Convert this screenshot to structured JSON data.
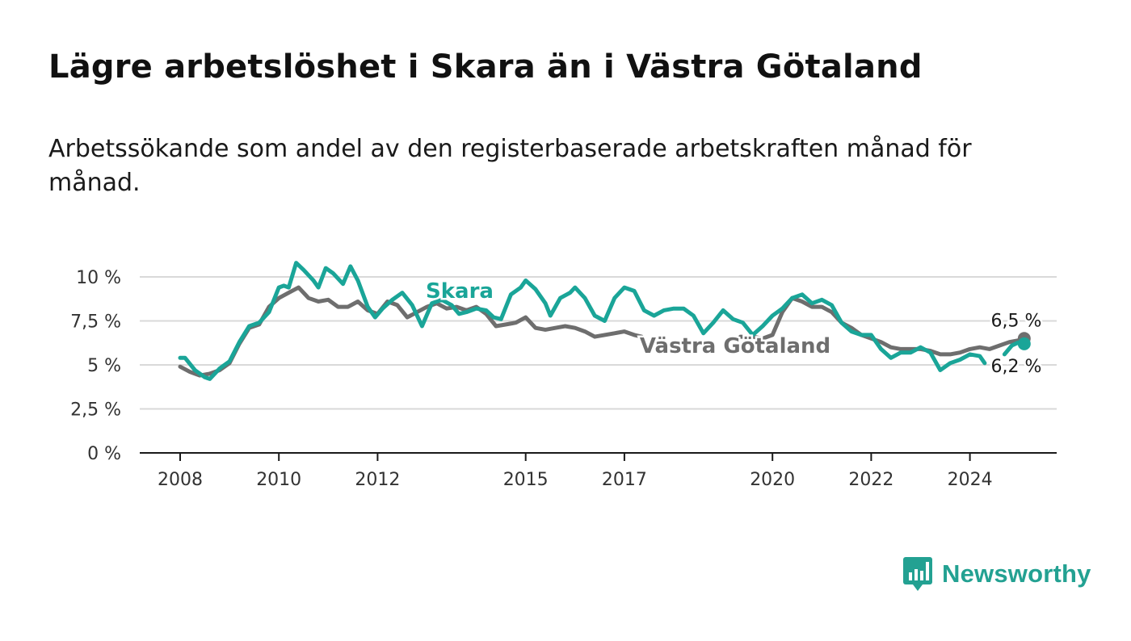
{
  "header": {
    "title": "Lägre arbetslöshet i Skara än i Västra Götaland",
    "subtitle": "Arbetssökande som andel av den registerbaserade arbetskraften månad för månad."
  },
  "brand": {
    "name": "Newsworthy",
    "color": "#23a192"
  },
  "chart_data": {
    "type": "line",
    "title": "Lägre arbetslöshet i Skara än i Västra Götaland",
    "subtitle": "Arbetssökande som andel av den registerbaserade arbetskraften månad för månad.",
    "xlabel": "",
    "ylabel": "",
    "xlim": [
      2007.2,
      2025.8
    ],
    "ylim": [
      0,
      10.5
    ],
    "x_ticks": [
      2008,
      2010,
      2012,
      2015,
      2017,
      2020,
      2022,
      2024
    ],
    "x_tick_labels": [
      "2008",
      "2010",
      "2012",
      "2015",
      "2017",
      "2020",
      "2022",
      "2024"
    ],
    "y_ticks": [
      0,
      2.5,
      5,
      7.5,
      10
    ],
    "y_tick_labels": [
      "0 %",
      "2,5 %",
      "5 %",
      "7,5 %",
      "10 %"
    ],
    "grid": true,
    "legend": "inline labels on lines",
    "series": [
      {
        "name": "Västra Götaland",
        "color": "#6e6e6e",
        "end_label": "6,5 %",
        "points": [
          [
            2008.0,
            4.9
          ],
          [
            2008.2,
            4.6
          ],
          [
            2008.4,
            4.4
          ],
          [
            2008.6,
            4.5
          ],
          [
            2008.8,
            4.7
          ],
          [
            2009.0,
            5.1
          ],
          [
            2009.2,
            6.2
          ],
          [
            2009.4,
            7.1
          ],
          [
            2009.6,
            7.3
          ],
          [
            2009.8,
            8.3
          ],
          [
            2010.0,
            8.8
          ],
          [
            2010.2,
            9.1
          ],
          [
            2010.4,
            9.4
          ],
          [
            2010.6,
            8.8
          ],
          [
            2010.8,
            8.6
          ],
          [
            2011.0,
            8.7
          ],
          [
            2011.2,
            8.3
          ],
          [
            2011.4,
            8.3
          ],
          [
            2011.6,
            8.6
          ],
          [
            2011.8,
            8.1
          ],
          [
            2012.0,
            7.9
          ],
          [
            2012.2,
            8.6
          ],
          [
            2012.4,
            8.4
          ],
          [
            2012.6,
            7.7
          ],
          [
            2012.8,
            8.0
          ],
          [
            2013.0,
            8.3
          ],
          [
            2013.2,
            8.5
          ],
          [
            2013.4,
            8.2
          ],
          [
            2013.6,
            8.3
          ],
          [
            2013.8,
            8.1
          ],
          [
            2014.0,
            8.3
          ],
          [
            2014.2,
            7.9
          ],
          [
            2014.4,
            7.2
          ],
          [
            2014.6,
            7.3
          ],
          [
            2014.8,
            7.4
          ],
          [
            2015.0,
            7.7
          ],
          [
            2015.2,
            7.1
          ],
          [
            2015.4,
            7.0
          ],
          [
            2015.6,
            7.1
          ],
          [
            2015.8,
            7.2
          ],
          [
            2016.0,
            7.1
          ],
          [
            2016.2,
            6.9
          ],
          [
            2016.4,
            6.6
          ],
          [
            2016.6,
            6.7
          ],
          [
            2016.8,
            6.8
          ],
          [
            2017.0,
            6.9
          ],
          [
            2017.2,
            6.7
          ],
          [
            2017.35,
            6.6
          ],
          null,
          [
            2019.35,
            6.6
          ],
          [
            2019.6,
            6.6
          ],
          [
            2019.8,
            6.5
          ],
          [
            2020.0,
            6.7
          ],
          [
            2020.2,
            8.0
          ],
          [
            2020.4,
            8.8
          ],
          [
            2020.6,
            8.6
          ],
          [
            2020.8,
            8.3
          ],
          [
            2021.0,
            8.3
          ],
          [
            2021.2,
            8.0
          ],
          [
            2021.4,
            7.4
          ],
          [
            2021.6,
            7.1
          ],
          [
            2021.8,
            6.7
          ],
          [
            2022.0,
            6.5
          ],
          [
            2022.2,
            6.3
          ],
          [
            2022.4,
            6.0
          ],
          [
            2022.6,
            5.9
          ],
          [
            2022.8,
            5.9
          ],
          [
            2023.0,
            5.9
          ],
          [
            2023.2,
            5.8
          ],
          [
            2023.4,
            5.6
          ],
          [
            2023.6,
            5.6
          ],
          [
            2023.8,
            5.7
          ],
          [
            2024.0,
            5.9
          ],
          [
            2024.2,
            6.0
          ],
          [
            2024.4,
            5.9
          ],
          [
            2024.6,
            6.1
          ],
          [
            2024.8,
            6.3
          ],
          [
            2025.0,
            6.4
          ],
          [
            2025.1,
            6.5
          ]
        ]
      },
      {
        "name": "Skara",
        "color": "#1aa598",
        "end_label": "6,2 %",
        "points": [
          [
            2008.0,
            5.4
          ],
          [
            2008.1,
            5.4
          ],
          [
            2008.3,
            4.7
          ],
          [
            2008.5,
            4.3
          ],
          [
            2008.6,
            4.2
          ],
          [
            2008.8,
            4.8
          ],
          [
            2009.0,
            5.2
          ],
          [
            2009.2,
            6.3
          ],
          [
            2009.4,
            7.2
          ],
          [
            2009.6,
            7.4
          ],
          [
            2009.8,
            8.0
          ],
          [
            2010.0,
            9.4
          ],
          [
            2010.1,
            9.5
          ],
          [
            2010.2,
            9.4
          ],
          [
            2010.35,
            10.8
          ],
          [
            2010.5,
            10.4
          ],
          [
            2010.7,
            9.8
          ],
          [
            2010.8,
            9.4
          ],
          [
            2010.95,
            10.5
          ],
          [
            2011.1,
            10.2
          ],
          [
            2011.3,
            9.6
          ],
          [
            2011.45,
            10.6
          ],
          [
            2011.6,
            9.8
          ],
          [
            2011.8,
            8.3
          ],
          [
            2011.95,
            7.7
          ],
          [
            2012.1,
            8.2
          ],
          [
            2012.3,
            8.7
          ],
          [
            2012.5,
            9.1
          ],
          [
            2012.7,
            8.4
          ],
          [
            2012.9,
            7.2
          ],
          [
            2013.1,
            8.5
          ],
          [
            2013.3,
            8.7
          ],
          [
            2013.5,
            8.4
          ],
          [
            2013.65,
            7.9
          ],
          [
            2013.8,
            8.0
          ],
          [
            2014.0,
            8.2
          ],
          [
            2014.2,
            8.1
          ],
          [
            2014.35,
            7.7
          ],
          [
            2014.5,
            7.6
          ],
          [
            2014.7,
            9.0
          ],
          [
            2014.9,
            9.4
          ],
          [
            2015.0,
            9.8
          ],
          [
            2015.2,
            9.3
          ],
          [
            2015.4,
            8.5
          ],
          [
            2015.5,
            7.8
          ],
          [
            2015.7,
            8.8
          ],
          [
            2015.9,
            9.1
          ],
          [
            2016.0,
            9.4
          ],
          [
            2016.2,
            8.8
          ],
          [
            2016.4,
            7.8
          ],
          [
            2016.6,
            7.5
          ],
          [
            2016.8,
            8.8
          ],
          [
            2017.0,
            9.4
          ],
          [
            2017.2,
            9.2
          ],
          [
            2017.4,
            8.1
          ],
          [
            2017.6,
            7.8
          ],
          [
            2017.8,
            8.1
          ],
          [
            2018.0,
            8.2
          ],
          [
            2018.2,
            8.2
          ],
          [
            2018.4,
            7.8
          ],
          [
            2018.6,
            6.8
          ],
          [
            2018.8,
            7.4
          ],
          [
            2019.0,
            8.1
          ],
          [
            2019.2,
            7.6
          ],
          [
            2019.4,
            7.4
          ],
          [
            2019.6,
            6.7
          ],
          [
            2019.8,
            7.2
          ],
          [
            2020.0,
            7.8
          ],
          [
            2020.2,
            8.2
          ],
          [
            2020.4,
            8.8
          ],
          [
            2020.6,
            9.0
          ],
          [
            2020.8,
            8.5
          ],
          [
            2021.0,
            8.7
          ],
          [
            2021.2,
            8.4
          ],
          [
            2021.4,
            7.4
          ],
          [
            2021.6,
            6.9
          ],
          [
            2021.8,
            6.7
          ],
          [
            2022.0,
            6.7
          ],
          [
            2022.2,
            5.9
          ],
          [
            2022.4,
            5.4
          ],
          [
            2022.6,
            5.7
          ],
          [
            2022.8,
            5.7
          ],
          [
            2023.0,
            6.0
          ],
          [
            2023.2,
            5.7
          ],
          [
            2023.4,
            4.7
          ],
          [
            2023.6,
            5.1
          ],
          [
            2023.8,
            5.3
          ],
          [
            2024.0,
            5.6
          ],
          [
            2024.2,
            5.5
          ],
          [
            2024.3,
            5.1
          ],
          null,
          [
            2024.7,
            5.6
          ],
          [
            2024.85,
            6.1
          ],
          [
            2025.0,
            6.3
          ],
          [
            2025.1,
            6.2
          ]
        ]
      }
    ],
    "annotations": [
      {
        "text": "Skara",
        "color": "#1aa598"
      },
      {
        "text": "Västra Götaland",
        "color": "#6e6e6e"
      }
    ]
  }
}
